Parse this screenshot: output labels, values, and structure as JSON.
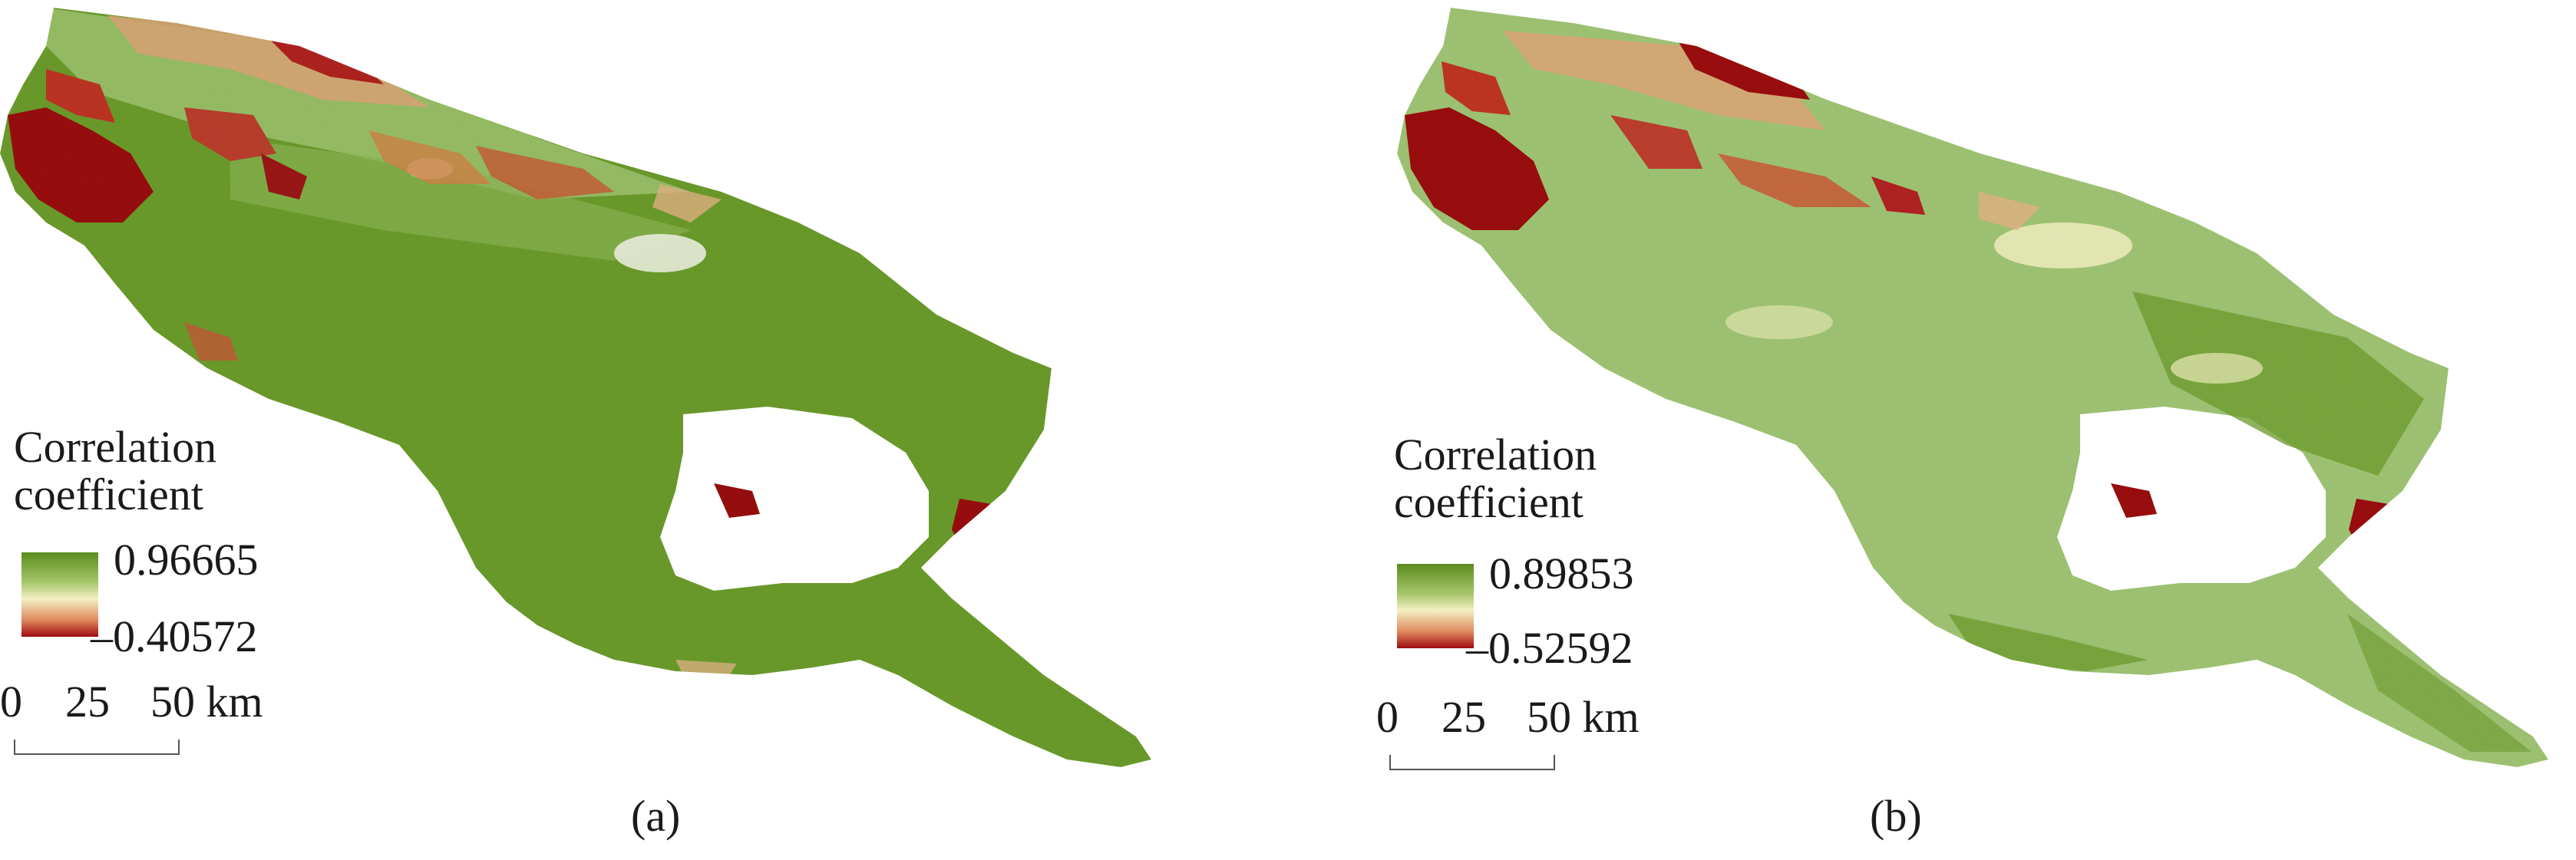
{
  "panels": [
    {
      "caption": "(a)",
      "legend": {
        "title_line1": "Correlation",
        "title_line2": "coefficient",
        "max": "0.96665",
        "min": "–0.40572"
      },
      "scale": {
        "ticks": [
          "0",
          "25",
          "50 km"
        ]
      }
    },
    {
      "caption": "(b)",
      "legend": {
        "title_line1": "Correlation",
        "title_line2": "coefficient",
        "max": "0.89853",
        "min": "–0.52592"
      },
      "scale": {
        "ticks": [
          "0",
          "25",
          "50 km"
        ]
      }
    }
  ],
  "colors": {
    "high": "#5a8c1e",
    "mid": "#f3f0c2",
    "low": "#9e0c10"
  }
}
